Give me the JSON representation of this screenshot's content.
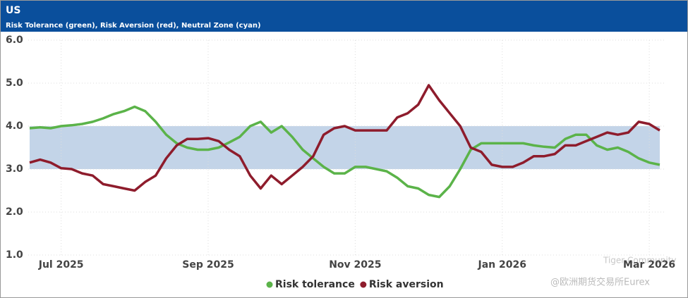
{
  "header": {
    "title": "US",
    "subtitle": "Risk Tolerance (green), Risk Aversion (red), Neutral Zone (cyan)"
  },
  "chart_data": {
    "type": "line",
    "categories": [
      null,
      null,
      null,
      "Jul 2025",
      null,
      null,
      null,
      null,
      null,
      null,
      null,
      null,
      null,
      null,
      null,
      null,
      null,
      "Sep 2025",
      null,
      null,
      null,
      null,
      null,
      null,
      null,
      null,
      null,
      null,
      null,
      null,
      null,
      "Nov 2025",
      null,
      null,
      null,
      null,
      null,
      null,
      null,
      null,
      null,
      null,
      null,
      null,
      null,
      "Jan 2026",
      null,
      null,
      null,
      null,
      null,
      null,
      null,
      null,
      null,
      null,
      null,
      null,
      null,
      "Mar 2026",
      null
    ],
    "series": [
      {
        "name": "Risk tolerance",
        "color": "#5bb349",
        "values": [
          3.95,
          3.97,
          3.95,
          4.0,
          4.02,
          4.05,
          4.1,
          4.18,
          4.28,
          4.35,
          4.45,
          4.35,
          4.1,
          3.8,
          3.6,
          3.5,
          3.45,
          3.45,
          3.5,
          3.62,
          3.75,
          4.0,
          4.1,
          3.85,
          4.0,
          3.75,
          3.45,
          3.25,
          3.05,
          2.9,
          2.9,
          3.05,
          3.05,
          3.0,
          2.95,
          2.8,
          2.6,
          2.55,
          2.4,
          2.35,
          2.6,
          3.0,
          3.45,
          3.6,
          3.6,
          3.6,
          3.6,
          3.6,
          3.55,
          3.52,
          3.5,
          3.7,
          3.8,
          3.8,
          3.55,
          3.45,
          3.5,
          3.4,
          3.25,
          3.15,
          3.1
        ]
      },
      {
        "name": "Risk aversion",
        "color": "#8e1c2c",
        "values": [
          3.15,
          3.22,
          3.15,
          3.02,
          3.0,
          2.9,
          2.85,
          2.65,
          2.6,
          2.55,
          2.5,
          2.7,
          2.85,
          3.25,
          3.55,
          3.7,
          3.7,
          3.72,
          3.65,
          3.45,
          3.3,
          2.85,
          2.55,
          2.85,
          2.65,
          2.85,
          3.05,
          3.3,
          3.8,
          3.95,
          4.0,
          3.9,
          3.9,
          3.9,
          3.9,
          4.2,
          4.3,
          4.5,
          4.95,
          4.6,
          4.3,
          4.0,
          3.5,
          3.4,
          3.1,
          3.05,
          3.05,
          3.15,
          3.3,
          3.3,
          3.35,
          3.55,
          3.55,
          3.65,
          3.75,
          3.85,
          3.8,
          3.85,
          4.1,
          4.05,
          3.9
        ]
      }
    ],
    "bands": [
      {
        "from": 3,
        "to": 4,
        "color": "#c3d4e8"
      }
    ],
    "ylim": [
      1,
      6
    ],
    "yticks": [
      {
        "value": 1,
        "label": "1.0"
      },
      {
        "value": 2,
        "label": "2.0"
      },
      {
        "value": 3,
        "label": "3.0"
      },
      {
        "value": 4,
        "label": "4.0"
      },
      {
        "value": 5,
        "label": "5.0"
      },
      {
        "value": 6,
        "label": "6.0"
      }
    ],
    "grid": true
  },
  "watermark": [
    "Tiger Community",
    "@欧洲期货交易所Eurex"
  ]
}
